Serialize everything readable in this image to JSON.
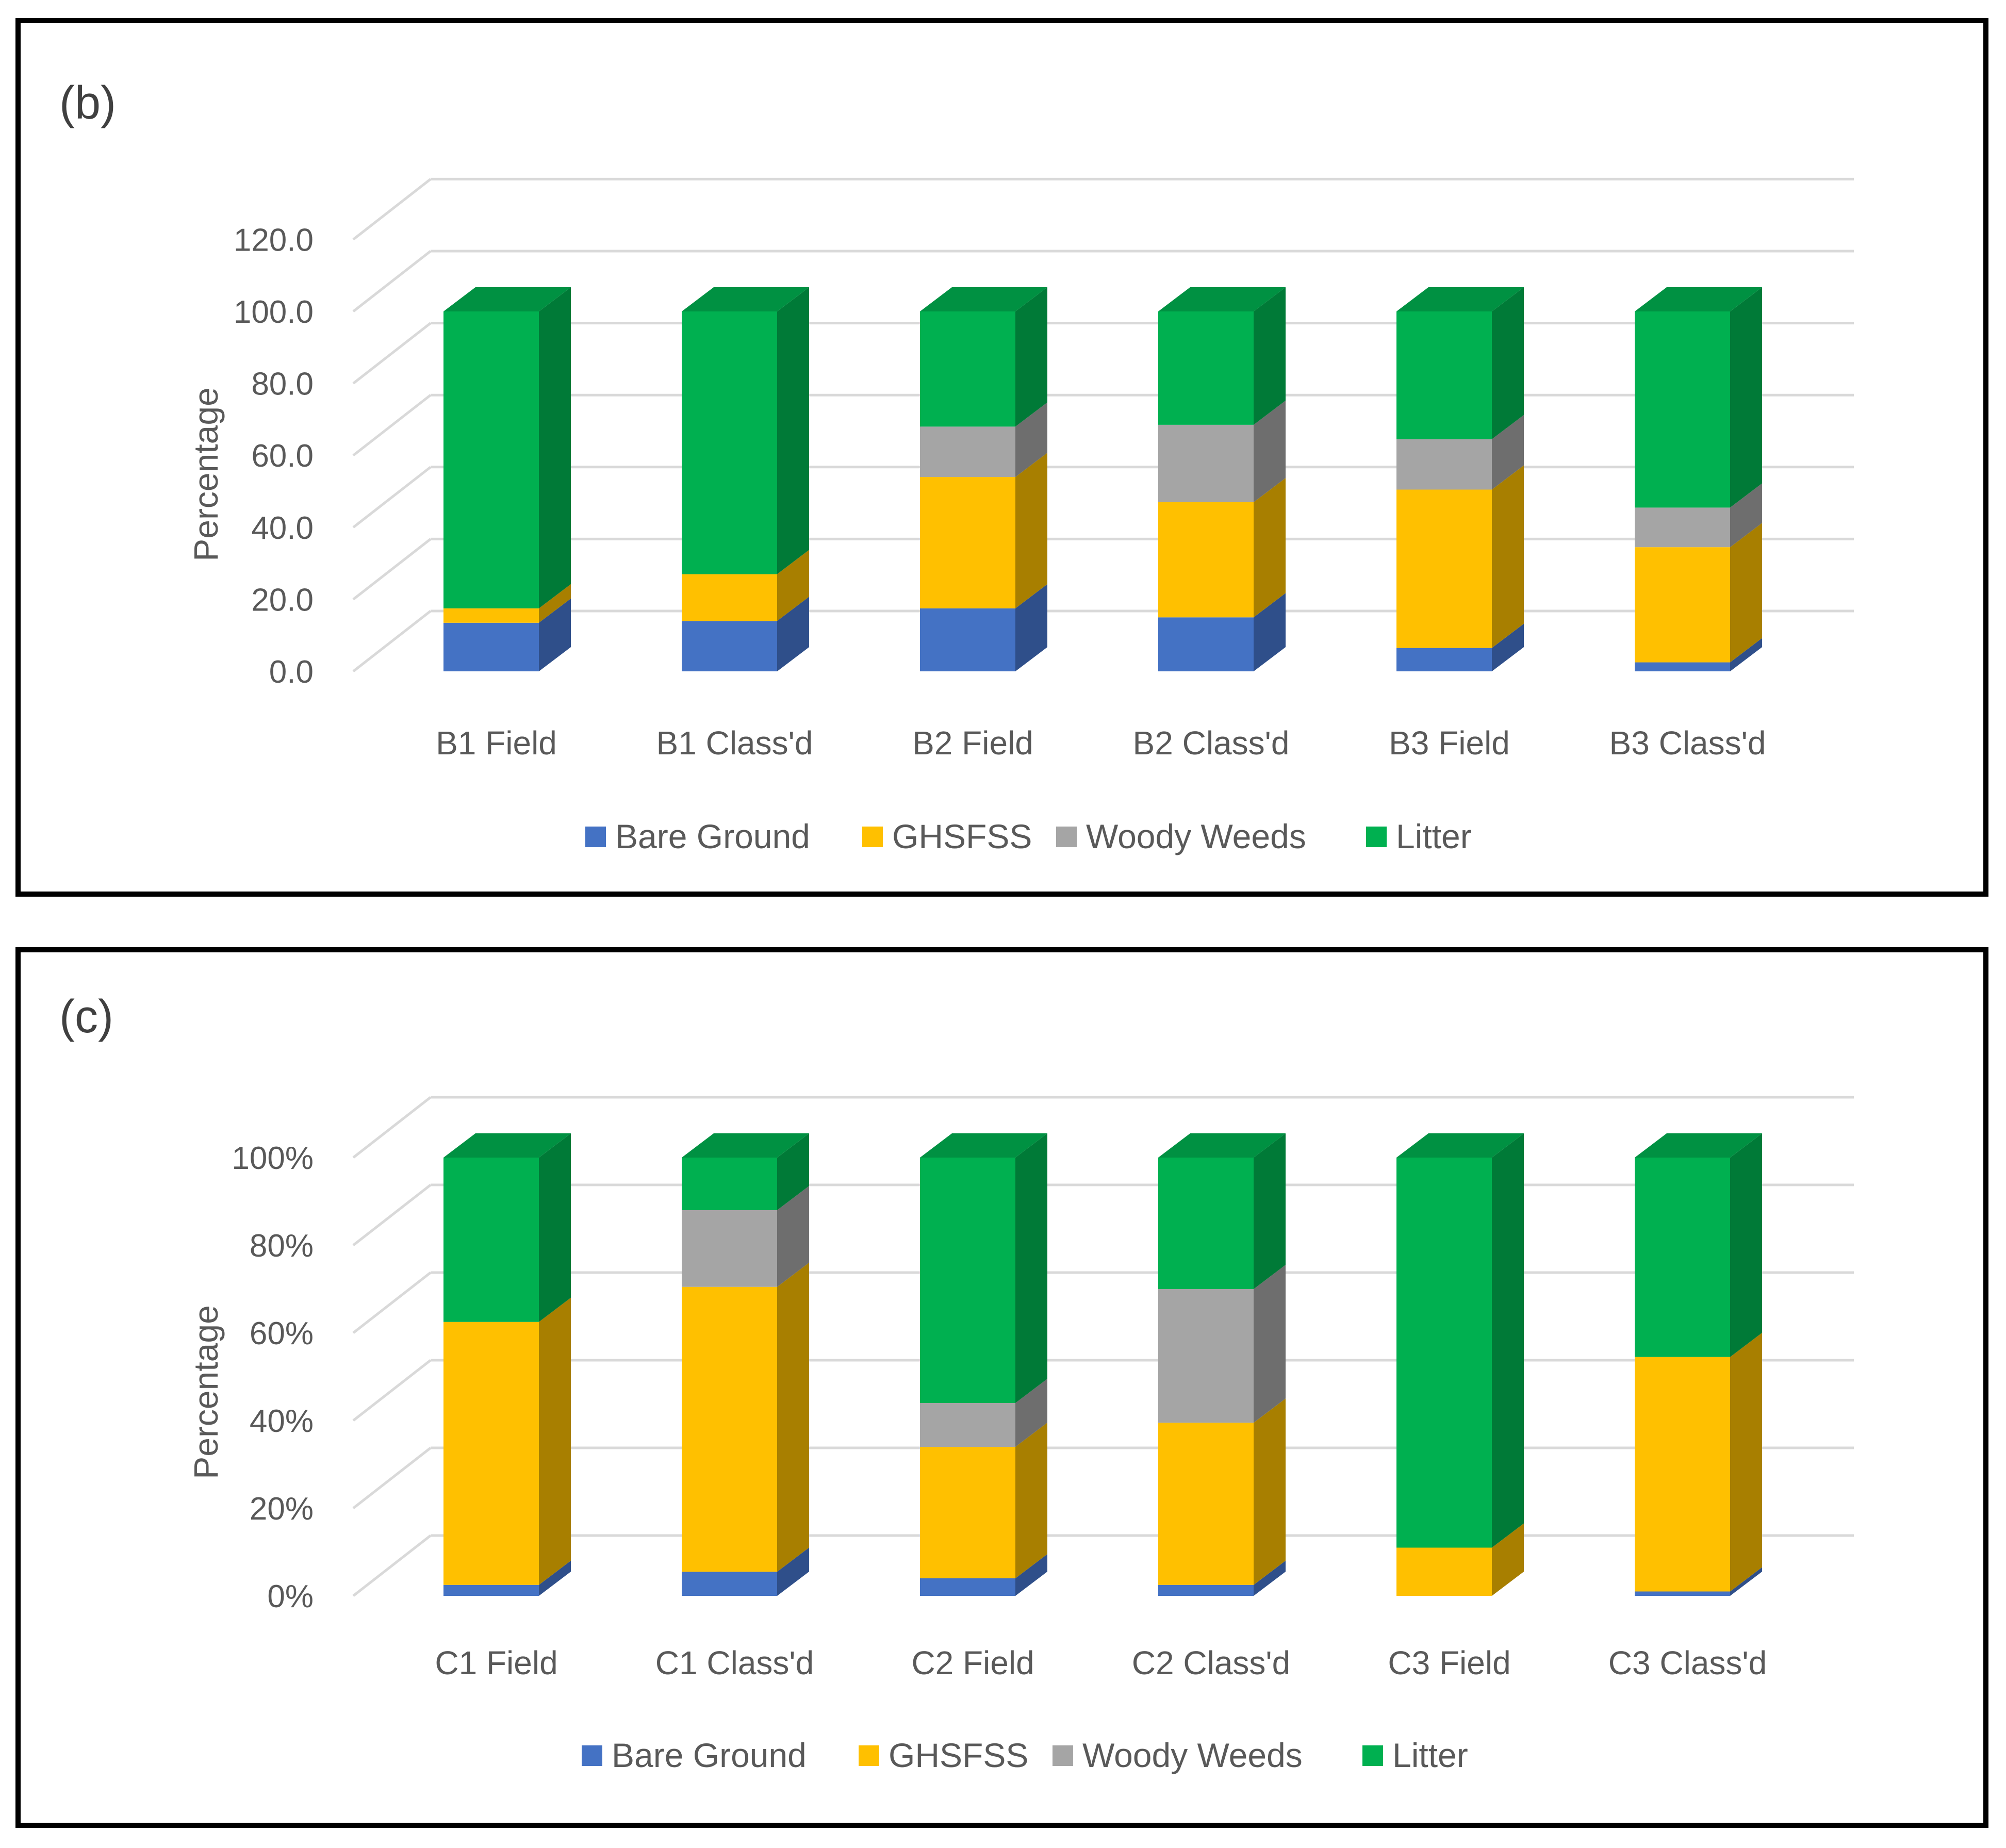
{
  "colors": {
    "bare_ground": {
      "front": "#4472C4",
      "side": "#2F4F8A",
      "top": "#3A63AB"
    },
    "ghsfss": {
      "front": "#FFC000",
      "side": "#A87F00",
      "top": "#D9A300"
    },
    "woody_weeds": {
      "front": "#A5A5A5",
      "side": "#6E6E6E",
      "top": "#8C8C8C"
    },
    "litter": {
      "front": "#00B050",
      "side": "#007A37",
      "top": "#009142"
    },
    "gridline": "#D9D9D9",
    "text": "#595959"
  },
  "chart_data": [
    {
      "id": "panel-b",
      "type": "bar",
      "stacked": true,
      "three_d": true,
      "panel_label": "(b)",
      "title": "",
      "xlabel": "",
      "ylabel": "Percentage",
      "ylim": [
        0,
        120
      ],
      "yticks": [
        "0.0",
        "20.0",
        "40.0",
        "60.0",
        "80.0",
        "100.0",
        "120.0"
      ],
      "categories": [
        "B1 Field",
        "B1 Class'd",
        "B2 Field",
        "B2 Class'd",
        "B3 Field",
        "B3 Class'd"
      ],
      "series": [
        {
          "name": "Bare Ground",
          "key": "bare_ground",
          "values": [
            13.5,
            14,
            17.5,
            15,
            6.5,
            2.5
          ]
        },
        {
          "name": "GHSFSS",
          "key": "ghsfss",
          "values": [
            4,
            13,
            36.5,
            32,
            44,
            32
          ]
        },
        {
          "name": "Woody Weeds",
          "key": "woody_weeds",
          "values": [
            0,
            0,
            14,
            21.5,
            14,
            11
          ]
        },
        {
          "name": "Litter",
          "key": "litter",
          "values": [
            82.5,
            73,
            32,
            31.5,
            35.5,
            54.5
          ]
        }
      ],
      "legend_position": "bottom",
      "grid": true
    },
    {
      "id": "panel-c",
      "type": "bar",
      "stacked": true,
      "three_d": true,
      "panel_label": "(c)",
      "title": "",
      "xlabel": "",
      "ylabel": "Percentage",
      "ylim": [
        0,
        100
      ],
      "yticks": [
        "0%",
        "20%",
        "40%",
        "60%",
        "80%",
        "100%"
      ],
      "categories": [
        "C1 Field",
        "C1 Class'd",
        "C2 Field",
        "C2 Class'd",
        "C3 Field",
        "C3 Class'd"
      ],
      "series": [
        {
          "name": "Bare Ground",
          "key": "bare_ground",
          "values": [
            2.5,
            5.5,
            4,
            2.5,
            0,
            1
          ]
        },
        {
          "name": "GHSFSS",
          "key": "ghsfss",
          "values": [
            60,
            65,
            30,
            37,
            11,
            53.5
          ]
        },
        {
          "name": "Woody Weeds",
          "key": "woody_weeds",
          "values": [
            0,
            17.5,
            10,
            30.5,
            0,
            0
          ]
        },
        {
          "name": "Litter",
          "key": "litter",
          "values": [
            37.5,
            12,
            56,
            30,
            89,
            45.5
          ]
        }
      ],
      "legend_position": "bottom",
      "grid": true
    }
  ]
}
